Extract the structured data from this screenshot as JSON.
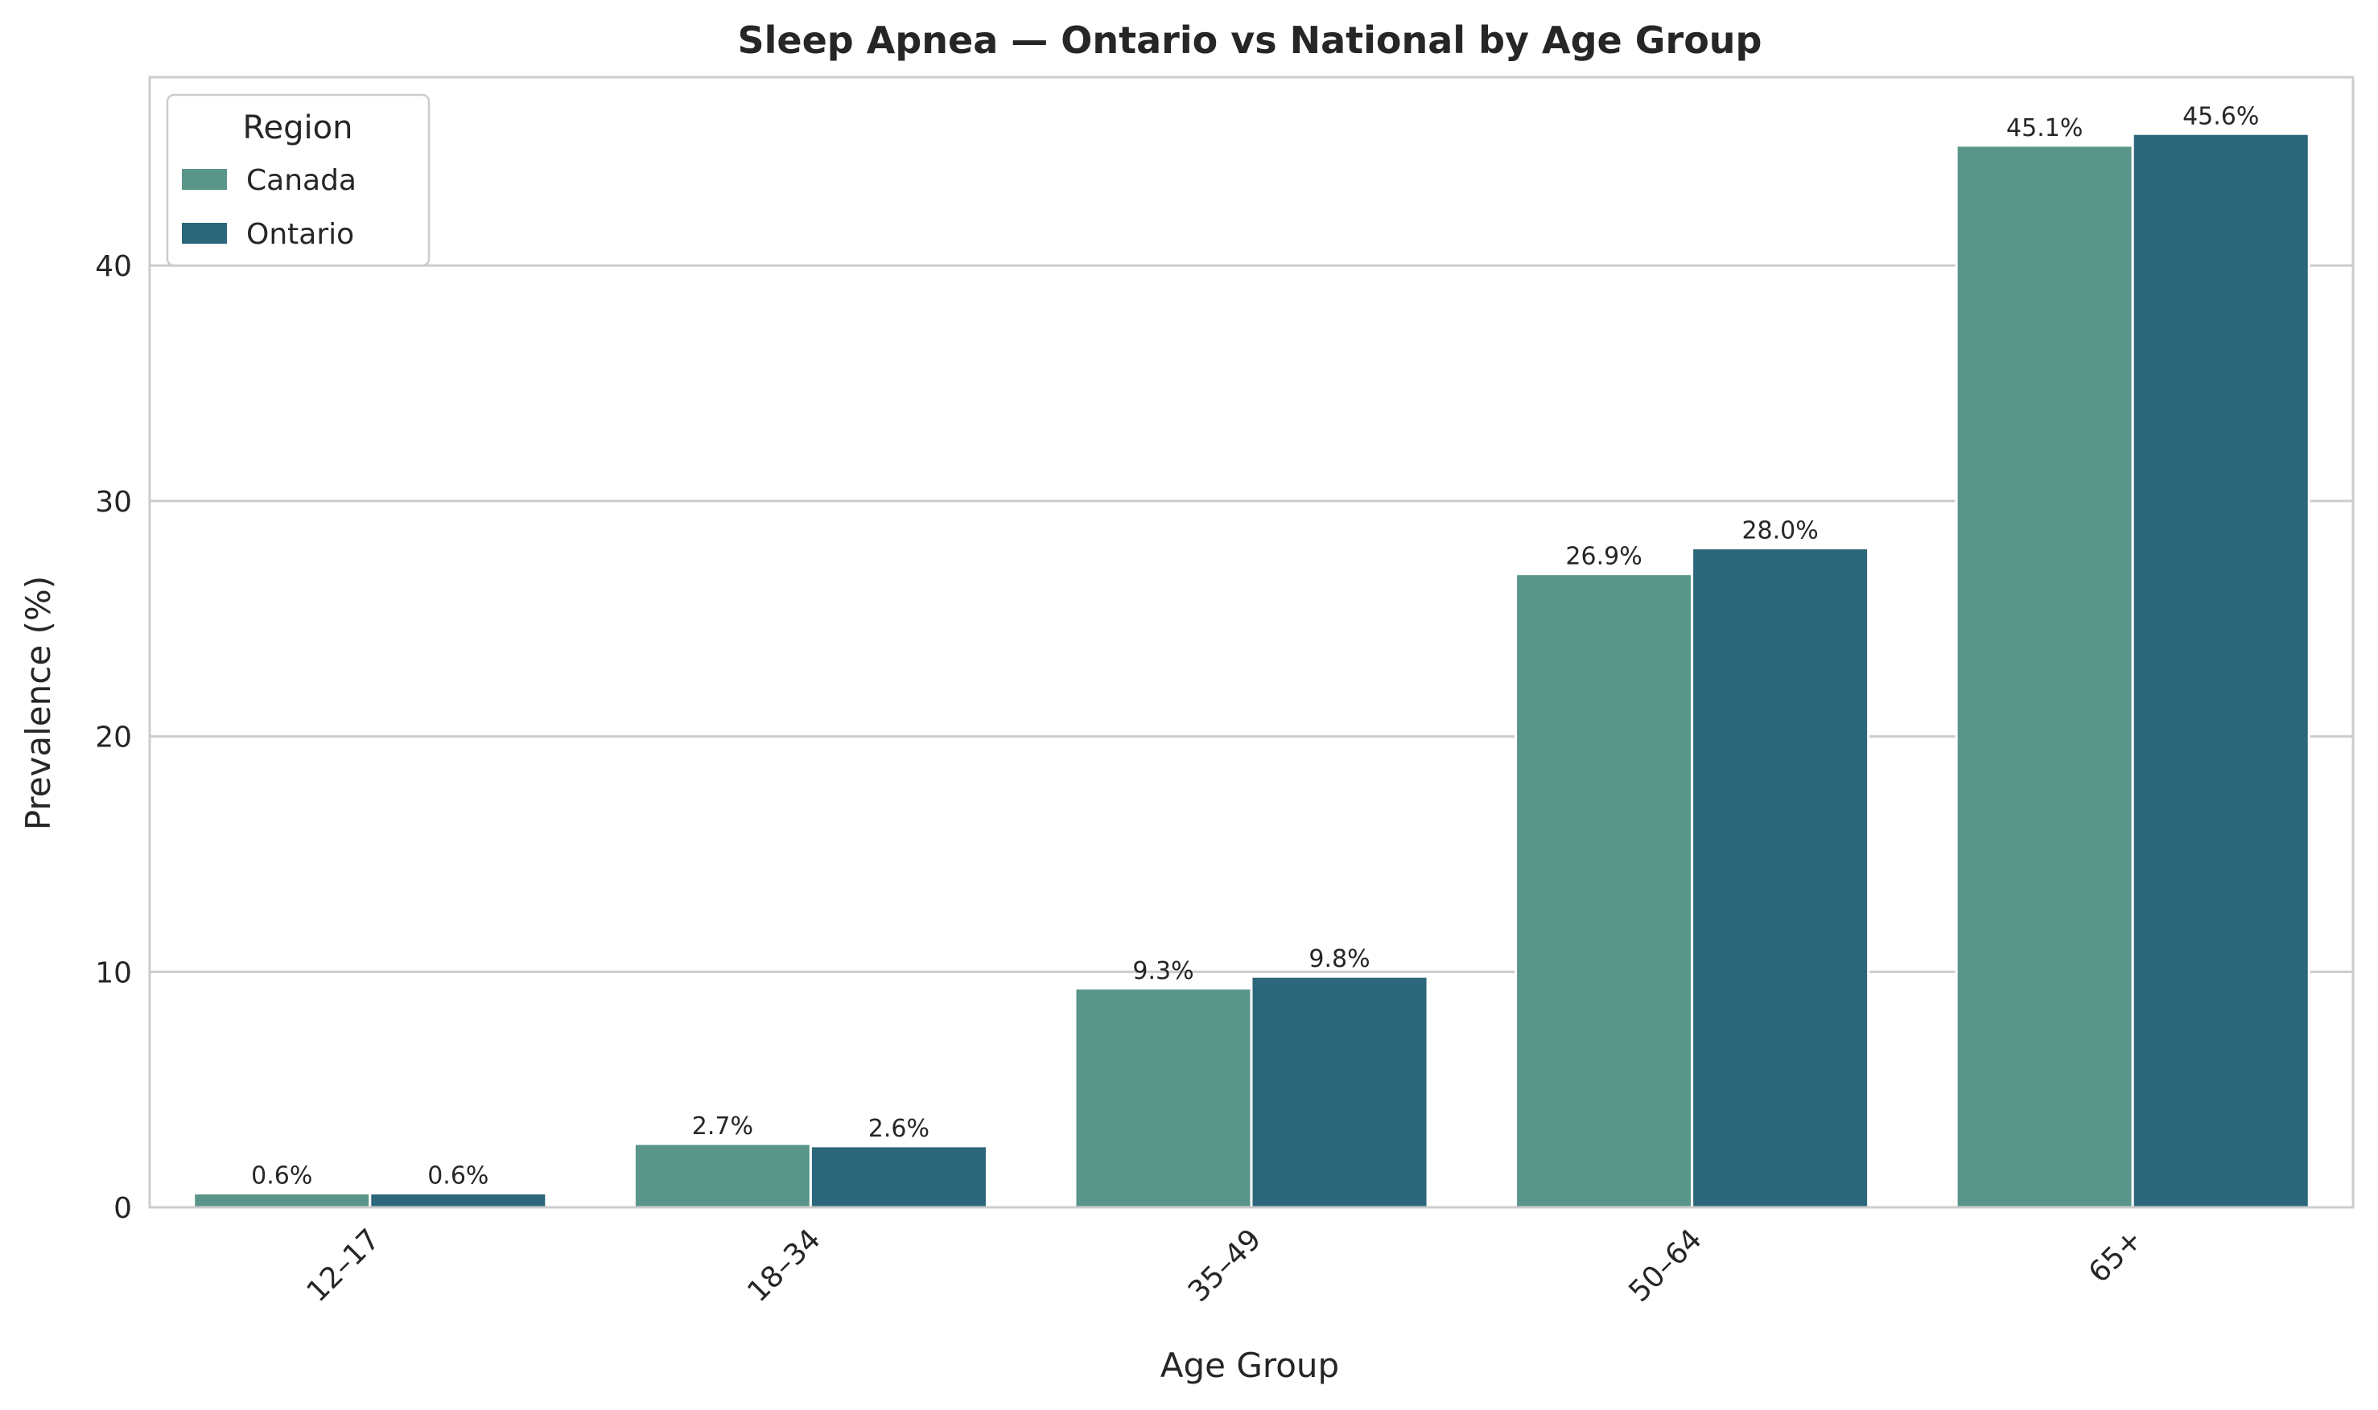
{
  "chart_data": {
    "type": "bar",
    "title": "Sleep Apnea — Ontario vs National by Age Group",
    "xlabel": "Age Group",
    "ylabel": "Prevalence (%)",
    "categories": [
      "12–17",
      "18–34",
      "35–49",
      "50–64",
      "65+"
    ],
    "series": [
      {
        "name": "Canada",
        "values": [
          0.6,
          2.7,
          9.3,
          26.9,
          45.1
        ],
        "labels": [
          "0.6%",
          "2.7%",
          "9.3%",
          "26.9%",
          "45.1%"
        ],
        "color": "#5a9589"
      },
      {
        "name": "Ontario",
        "values": [
          0.6,
          2.6,
          9.8,
          28.0,
          45.6
        ],
        "labels": [
          "0.6%",
          "2.6%",
          "9.8%",
          "28.0%",
          "45.6%"
        ],
        "color": "#2c667b"
      }
    ],
    "ylim": [
      0,
      48
    ],
    "yticks": [
      0,
      10,
      20,
      30,
      40
    ],
    "ytick_labels": [
      "0",
      "10",
      "20",
      "30",
      "40"
    ],
    "grid": true,
    "legend": {
      "title": "Region",
      "placement": "top-left"
    }
  }
}
